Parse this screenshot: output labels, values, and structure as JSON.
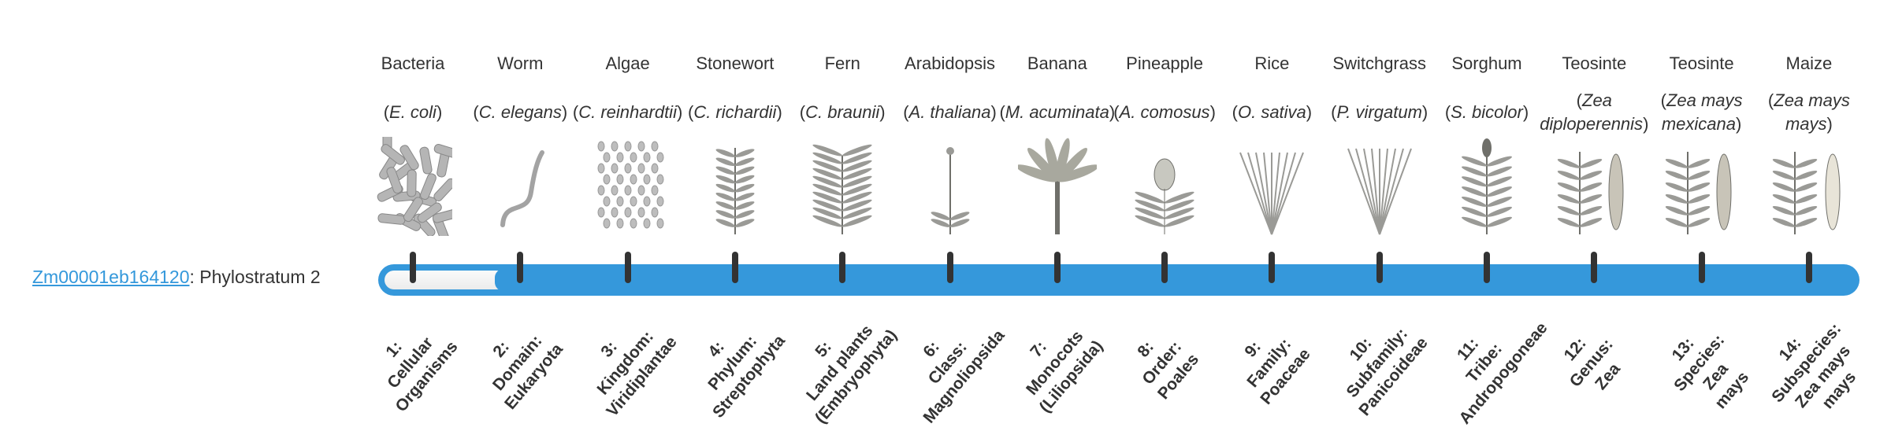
{
  "gene": {
    "id": "Zm00001eb164120",
    "separator": ": ",
    "phylostratum_label": "Phylostratum 2",
    "phylostratum": 2,
    "total_strata": 14
  },
  "colors": {
    "bar": "#3598db",
    "tick": "#333333",
    "link": "#3498db",
    "fill": "#f2f2f2"
  },
  "organisms": [
    {
      "common": "Bacteria",
      "species": "E. coli",
      "icon": "bacteria-illustration",
      "stratum": [
        "1:",
        "Cellular",
        "Organisms"
      ]
    },
    {
      "common": "Worm",
      "species": "C. elegans",
      "icon": "worm-illustration",
      "stratum": [
        "2:",
        "Domain:",
        "Eukaryota"
      ]
    },
    {
      "common": "Algae",
      "species": "C. reinhardtii",
      "icon": "algae-illustration",
      "stratum": [
        "3:",
        "Kingdom:",
        "Viridiplantae"
      ]
    },
    {
      "common": "Stonewort",
      "species": "C. richardii",
      "icon": "stonewort-illustration",
      "stratum": [
        "4:",
        "Phylum:",
        "Streptophyta"
      ]
    },
    {
      "common": "Fern",
      "species": "C. braunii",
      "icon": "fern-illustration",
      "stratum": [
        "5:",
        "Land plants",
        "(Embryophyta)"
      ]
    },
    {
      "common": "Arabidopsis",
      "species": "A. thaliana",
      "icon": "arabidopsis-illustration",
      "stratum": [
        "6:",
        "Class:",
        "Magnoliopsida"
      ]
    },
    {
      "common": "Banana",
      "species": "M. acuminata",
      "icon": "banana-illustration",
      "stratum": [
        "7:",
        "Monocots",
        "(Liliopsida)"
      ]
    },
    {
      "common": "Pineapple",
      "species": "A. comosus",
      "icon": "pineapple-illustration",
      "stratum": [
        "8:",
        "Order:",
        "Poales"
      ]
    },
    {
      "common": "Rice",
      "species": "O. sativa",
      "icon": "rice-illustration",
      "stratum": [
        "9:",
        "Family:",
        "Poaceae"
      ]
    },
    {
      "common": "Switchgrass",
      "species": "P. virgatum",
      "icon": "switchgrass-illustration",
      "stratum": [
        "10:",
        "Subfamily:",
        "Panicoideae"
      ]
    },
    {
      "common": "Sorghum",
      "species": "S. bicolor",
      "icon": "sorghum-illustration",
      "stratum": [
        "11:",
        "Tribe:",
        "Andropogoneae"
      ]
    },
    {
      "common": "Teosinte",
      "species": "Zea diploperennis",
      "icon": "teosinte-illustration",
      "stratum": [
        "12:",
        "Genus:",
        "Zea"
      ]
    },
    {
      "common": "Teosinte",
      "species": "Zea mays mexicana",
      "icon": "teosinte-mexicana-illustration",
      "stratum": [
        "13:",
        "Species:",
        "Zea",
        "mays"
      ]
    },
    {
      "common": "Maize",
      "species": "Zea mays mays",
      "icon": "maize-illustration",
      "stratum": [
        "14:",
        "Subspecies:",
        "Zea mays",
        "mays"
      ]
    }
  ]
}
